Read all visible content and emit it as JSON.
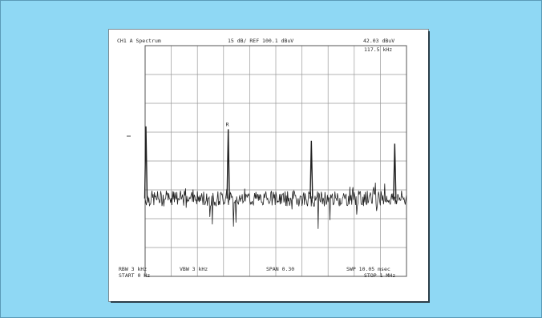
{
  "header": {
    "channel": "CH1 A  Spectrum",
    "scale": "15 dB/ REF 100.1 dBuV",
    "marker_value": "42.03 dBuV",
    "marker_freq": "117.5 kHz"
  },
  "marker_symbol": "R",
  "footer": {
    "rbw": "RBW  3 kHz",
    "vbw": "VBW 3 kHz",
    "span": "SPAN 0.30",
    "swp": "SWP   10.05 msec",
    "start": "START  0 Hz",
    "stop": "STOP  1 MHz"
  },
  "colors": {
    "background": "#8fd8f4",
    "card": "#ffffff",
    "trace": "#222222",
    "grid": "#9a9a9a"
  },
  "chart_data": {
    "type": "line",
    "title": "",
    "xlabel": "",
    "ylabel": "",
    "grid": true,
    "x_divisions": 10,
    "y_divisions": 8,
    "xlim": [
      0,
      1000
    ],
    "ylim": [
      -8,
      0
    ],
    "noise_floor_div": -5.3,
    "peaks": [
      {
        "x": 0,
        "y": -2.8
      },
      {
        "x": 318,
        "y": -2.9
      },
      {
        "x": 636,
        "y": -3.3
      },
      {
        "x": 955,
        "y": -3.4
      }
    ]
  }
}
